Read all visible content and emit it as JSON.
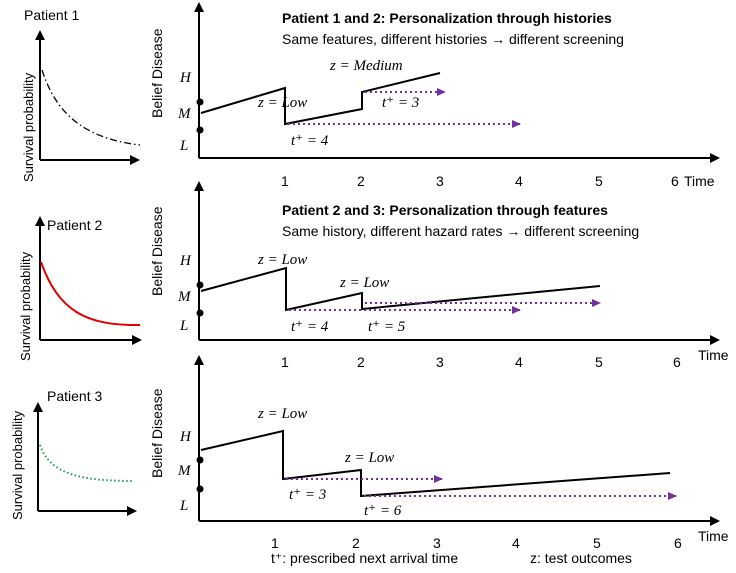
{
  "panels": [
    {
      "patient_label": "Patient 1",
      "survival_ylabel": "Survival probability",
      "survival_curve_color": "#000000",
      "survival_curve_style": "dash-dot",
      "belief_ylabel": "Belief Disease",
      "heading": "Patient 1 and 2: Personalization through histories",
      "subheading": "Same features, different histories →  different screening",
      "level_labels": [
        "H",
        "M",
        "L"
      ],
      "x_ticks": [
        "1",
        "2",
        "3",
        "4",
        "5",
        "6"
      ],
      "x_axis_label": "Time",
      "test_outcomes": [
        "z = Low",
        "z = Medium"
      ],
      "next_arrivals": [
        "t⁺  = 4",
        "t⁺  = 3"
      ]
    },
    {
      "patient_label": "Patient 2",
      "survival_ylabel": "Survival probability",
      "survival_curve_color": "#e00000",
      "survival_curve_style": "solid",
      "belief_ylabel": "Belief Disease",
      "heading": "Patient 2 and 3: Personalization through features",
      "subheading": "Same history, different hazard rates →  different screening",
      "level_labels": [
        "H",
        "M",
        "L"
      ],
      "x_ticks": [
        "1",
        "2",
        "3",
        "4",
        "5",
        "6"
      ],
      "x_axis_label": "Time",
      "test_outcomes": [
        "z = Low",
        "z = Low"
      ],
      "next_arrivals": [
        "t⁺  = 4",
        "t⁺  = 5"
      ]
    },
    {
      "patient_label": "Patient 3",
      "survival_ylabel": "Survival probability",
      "survival_curve_color": "#1aa050",
      "survival_curve_style": "dotted",
      "belief_ylabel": "Belief Disease",
      "heading": "",
      "subheading": "",
      "level_labels": [
        "H",
        "M",
        "L"
      ],
      "x_ticks": [
        "1",
        "2",
        "3",
        "4",
        "5",
        "6"
      ],
      "x_axis_label": "Time",
      "test_outcomes": [
        "z = Low",
        "z = Low"
      ],
      "next_arrivals": [
        "t⁺  = 3",
        "t⁺  = 6"
      ]
    }
  ],
  "legend": {
    "t_plus": "t⁺: prescribed next arrival time",
    "z": "z: test outcomes"
  },
  "colors": {
    "arrow_dotted": "#7030a0",
    "axis": "#000000"
  }
}
